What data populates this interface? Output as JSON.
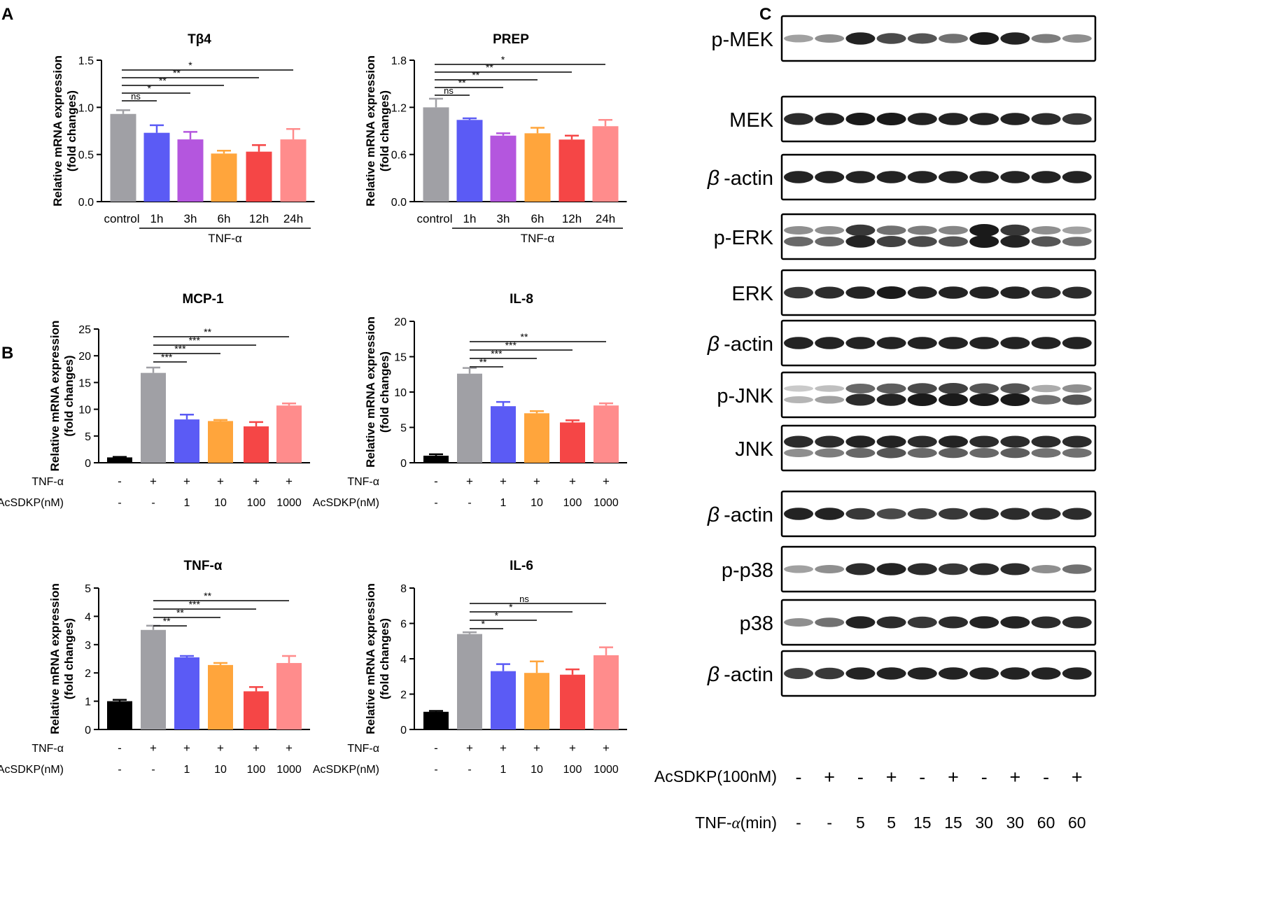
{
  "panel_labels": [
    "A",
    "B",
    "C"
  ],
  "colors": {
    "control": "#a0a0a5",
    "blank": "#000000",
    "c1": "#5b5bf5",
    "c2": "#b456de",
    "c3": "#ffa53c",
    "c4": "#f54646",
    "c5": "#ff8c8c",
    "text": "#000000",
    "band": "#1a1a1a"
  },
  "chart_data": [
    {
      "id": "tb4",
      "type": "bar",
      "title": "Tβ4",
      "ylabel": [
        "Relative mRNA expression",
        "(fold changes)"
      ],
      "ylim": [
        0,
        1.5
      ],
      "yticks": [
        "0.0",
        "0.5",
        "1.0",
        "1.5"
      ],
      "categories": [
        "control",
        "1h",
        "3h",
        "6h",
        "12h",
        "24h"
      ],
      "values": [
        0.93,
        0.73,
        0.66,
        0.51,
        0.53,
        0.66
      ],
      "errors": [
        0.04,
        0.08,
        0.08,
        0.03,
        0.07,
        0.11
      ],
      "group_label": "TNF-α",
      "significance": [
        "ns",
        "*",
        "**",
        "**",
        "*"
      ]
    },
    {
      "id": "prep",
      "type": "bar",
      "title": "PREP",
      "ylabel": [
        "Relative mRNA expression",
        "(fold changes)"
      ],
      "ylim": [
        0,
        1.8
      ],
      "yticks": [
        "0.0",
        "0.6",
        "1.2",
        "1.8"
      ],
      "categories": [
        "control",
        "1h",
        "3h",
        "6h",
        "12h",
        "24h"
      ],
      "values": [
        1.2,
        1.04,
        0.84,
        0.87,
        0.79,
        0.96
      ],
      "errors": [
        0.11,
        0.02,
        0.03,
        0.07,
        0.05,
        0.08
      ],
      "group_label": "TNF-α",
      "significance": [
        "ns",
        "**",
        "**",
        "**",
        "*"
      ]
    },
    {
      "id": "mcp1",
      "type": "bar",
      "title": "MCP-1",
      "ylabel": [
        "Relative mRNA expression",
        "(fold changes)"
      ],
      "ylim": [
        0,
        25
      ],
      "yticks": [
        "0",
        "5",
        "10",
        "15",
        "20",
        "25"
      ],
      "row1_label": "TNF-α",
      "row1": [
        "-",
        "+",
        "+",
        "+",
        "+",
        "+"
      ],
      "row2_label": "AcSDKP(nM)",
      "row2": [
        "-",
        "-",
        "1",
        "10",
        "100",
        "1000"
      ],
      "values": [
        1.0,
        16.8,
        8.1,
        7.8,
        6.8,
        10.7
      ],
      "errors": [
        0.1,
        1.0,
        0.9,
        0.2,
        0.8,
        0.4
      ],
      "significance": [
        "***",
        "***",
        "***",
        "**"
      ]
    },
    {
      "id": "il8",
      "type": "bar",
      "title": "IL-8",
      "ylabel": [
        "Relative mRNA expression",
        "(fold changes)"
      ],
      "ylim": [
        0,
        20
      ],
      "yticks": [
        "0",
        "5",
        "10",
        "15",
        "20"
      ],
      "row1_label": "TNF-α",
      "row1": [
        "-",
        "+",
        "+",
        "+",
        "+",
        "+"
      ],
      "row2_label": "AcSDKP(nM)",
      "row2": [
        "-",
        "-",
        "1",
        "10",
        "100",
        "1000"
      ],
      "values": [
        1.0,
        12.6,
        8.0,
        7.0,
        5.7,
        8.1
      ],
      "errors": [
        0.2,
        0.8,
        0.6,
        0.3,
        0.3,
        0.3
      ],
      "significance": [
        "**",
        "***",
        "***",
        "**"
      ]
    },
    {
      "id": "tnfa",
      "type": "bar",
      "title": "TNF-α",
      "ylabel": [
        "Relative mRNA expression",
        "(fold changes)"
      ],
      "ylim": [
        0,
        5
      ],
      "yticks": [
        "0",
        "1",
        "2",
        "3",
        "4",
        "5"
      ],
      "row1_label": "TNF-α",
      "row1": [
        "-",
        "+",
        "+",
        "+",
        "+",
        "+"
      ],
      "row2_label": "AcSDKP(nM)",
      "row2": [
        "-",
        "-",
        "1",
        "10",
        "100",
        "1000"
      ],
      "values": [
        1.0,
        3.52,
        2.55,
        2.28,
        1.35,
        2.35
      ],
      "errors": [
        0.05,
        0.15,
        0.05,
        0.07,
        0.15,
        0.25
      ],
      "significance": [
        "**",
        "**",
        "***",
        "**"
      ]
    },
    {
      "id": "il6",
      "type": "bar",
      "title": "IL-6",
      "ylabel": [
        "Relative mRNA expression",
        "(fold changes)"
      ],
      "ylim": [
        0,
        8
      ],
      "yticks": [
        "0",
        "2",
        "4",
        "6",
        "8"
      ],
      "row1_label": "TNF-α",
      "row1": [
        "-",
        "+",
        "+",
        "+",
        "+",
        "+"
      ],
      "row2_label": "AcSDKP(nM)",
      "row2": [
        "-",
        "-",
        "1",
        "10",
        "100",
        "1000"
      ],
      "values": [
        1.0,
        5.4,
        3.3,
        3.2,
        3.1,
        4.2
      ],
      "errors": [
        0.05,
        0.1,
        0.4,
        0.65,
        0.3,
        0.45
      ],
      "significance": [
        "*",
        "*",
        "*",
        "ns"
      ]
    }
  ],
  "western_blot": {
    "rows": [
      {
        "label": "p-MEK",
        "beta": false,
        "bands": [
          [
            0.3,
            0.4,
            0.95,
            0.75,
            0.7,
            0.55,
            1.0,
            0.95,
            0.5,
            0.4
          ]
        ]
      },
      {
        "label": "MEK",
        "beta": false,
        "bands": [
          [
            0.9,
            0.95,
            1.0,
            1.0,
            0.95,
            0.95,
            0.95,
            0.95,
            0.9,
            0.85
          ]
        ]
      },
      {
        "label": "-actin",
        "beta": true,
        "bands": [
          [
            0.95,
            0.95,
            0.95,
            0.95,
            0.95,
            0.95,
            0.95,
            0.95,
            0.95,
            0.95
          ]
        ]
      },
      {
        "label": "p-ERK",
        "beta": false,
        "bands": [
          [
            0.4,
            0.4,
            0.85,
            0.55,
            0.5,
            0.45,
            1.0,
            0.85,
            0.4,
            0.3
          ],
          [
            0.6,
            0.6,
            0.95,
            0.8,
            0.75,
            0.7,
            1.0,
            0.95,
            0.7,
            0.55
          ]
        ]
      },
      {
        "label": "ERK",
        "beta": false,
        "bands": [
          [
            0.85,
            0.9,
            0.95,
            1.0,
            0.95,
            0.95,
            0.95,
            0.95,
            0.9,
            0.9
          ]
        ]
      },
      {
        "label": "-actin",
        "beta": true,
        "bands": [
          [
            0.95,
            0.95,
            0.95,
            0.95,
            0.95,
            0.95,
            0.95,
            0.95,
            0.95,
            0.95
          ]
        ]
      },
      {
        "label": "p-JNK",
        "beta": false,
        "bands": [
          [
            0.1,
            0.15,
            0.6,
            0.65,
            0.75,
            0.8,
            0.7,
            0.7,
            0.25,
            0.4
          ],
          [
            0.2,
            0.3,
            0.9,
            0.95,
            1.0,
            1.0,
            1.0,
            1.0,
            0.55,
            0.7
          ]
        ]
      },
      {
        "label": "JNK",
        "beta": false,
        "bands": [
          [
            0.9,
            0.9,
            0.95,
            0.95,
            0.9,
            0.95,
            0.9,
            0.9,
            0.9,
            0.9
          ],
          [
            0.4,
            0.5,
            0.6,
            0.7,
            0.6,
            0.65,
            0.6,
            0.65,
            0.55,
            0.55
          ]
        ]
      },
      {
        "label": "-actin",
        "beta": true,
        "bands": [
          [
            0.95,
            0.95,
            0.85,
            0.75,
            0.8,
            0.85,
            0.9,
            0.9,
            0.9,
            0.9
          ]
        ]
      },
      {
        "label": "p-p38",
        "beta": false,
        "bands": [
          [
            0.3,
            0.4,
            0.9,
            0.95,
            0.9,
            0.85,
            0.9,
            0.9,
            0.4,
            0.55
          ]
        ]
      },
      {
        "label": "p38",
        "beta": false,
        "bands": [
          [
            0.4,
            0.55,
            0.95,
            0.9,
            0.85,
            0.9,
            0.95,
            0.95,
            0.9,
            0.9
          ]
        ]
      },
      {
        "label": "-actin",
        "beta": true,
        "bands": [
          [
            0.8,
            0.85,
            0.95,
            0.95,
            0.95,
            0.95,
            0.95,
            0.95,
            0.95,
            0.95
          ]
        ]
      }
    ],
    "acsdkp_label": "AcSDKP(100nM)",
    "acsdkp": [
      "-",
      "+",
      "-",
      "+",
      "-",
      "+",
      "-",
      "+",
      "-",
      "+"
    ],
    "tnf_label": "TNF-",
    "tnf_unit": "(min)",
    "tnf": [
      "-",
      "-",
      "5",
      "5",
      "15",
      "15",
      "30",
      "30",
      "60",
      "60"
    ]
  }
}
